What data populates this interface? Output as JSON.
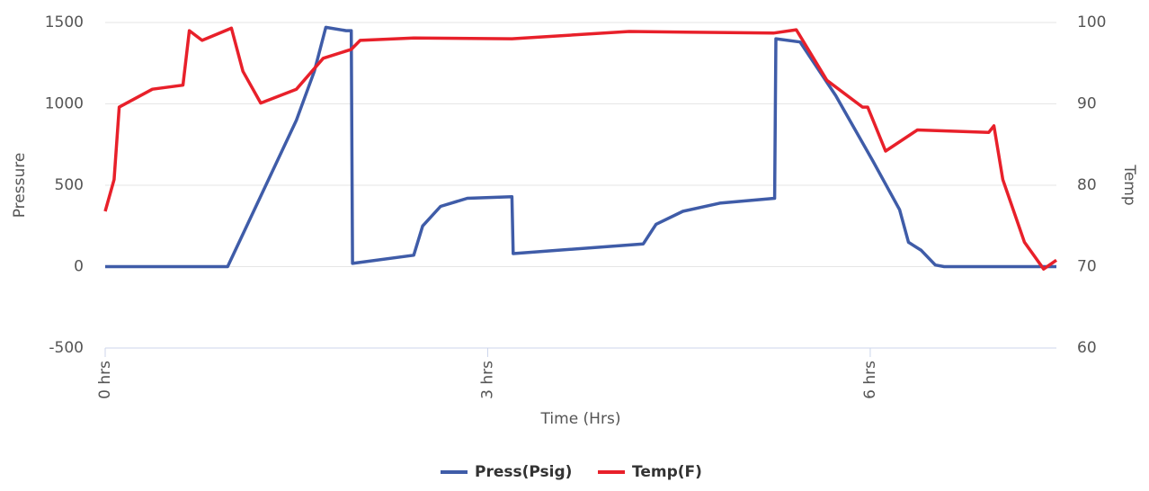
{
  "chart_data": {
    "type": "line",
    "x_label": "Time (Hrs)",
    "y_label": "Pressure",
    "y2_label": "Temp",
    "xlim": [
      0,
      7.46
    ],
    "xticks": [
      {
        "value": 0,
        "label": "0 hrs"
      },
      {
        "value": 3,
        "label": "3 hrs"
      },
      {
        "value": 6,
        "label": "6 hrs"
      }
    ],
    "ylim": [
      -500,
      1500
    ],
    "yticks": [
      -500,
      0,
      500,
      1000,
      1500
    ],
    "y2lim": [
      60,
      100
    ],
    "y2ticks": [
      60,
      70,
      80,
      90,
      100
    ],
    "grid": true,
    "legend": "bottom",
    "series": [
      {
        "name": "Press(Psig)",
        "color": "#3f5ca8",
        "x": [
          0,
          0.96,
          1.5,
          1.64,
          1.73,
          1.89,
          1.93,
          1.94,
          2.42,
          2.49,
          2.63,
          2.84,
          3.19,
          3.2,
          4.22,
          4.32,
          4.53,
          4.82,
          5.25,
          5.26,
          5.45,
          5.73,
          6.02,
          6.23,
          6.3,
          6.4,
          6.51,
          6.58,
          7.46
        ],
        "values": [
          0,
          0,
          900,
          1200,
          1470,
          1450,
          1450,
          20,
          70,
          250,
          370,
          420,
          430,
          80,
          140,
          260,
          340,
          390,
          420,
          1400,
          1380,
          1050,
          650,
          350,
          150,
          100,
          10,
          0,
          0
        ]
      },
      {
        "name": "Temp(F)",
        "color": "#e8202a",
        "axis": "y2",
        "x": [
          0,
          0.07,
          0.11,
          0.37,
          0.61,
          0.66,
          0.76,
          0.99,
          1.08,
          1.22,
          1.5,
          1.71,
          1.93,
          2.0,
          2.42,
          3.19,
          4.11,
          5.24,
          5.42,
          5.66,
          5.94,
          5.98,
          6.12,
          6.37,
          6.93,
          6.97,
          7.04,
          7.21,
          7.36,
          7.46
        ],
        "values": [
          76.8,
          80.7,
          89.6,
          91.8,
          92.3,
          99,
          97.8,
          99.3,
          94,
          90.1,
          91.8,
          95.6,
          96.7,
          97.8,
          98.1,
          98,
          98.9,
          98.7,
          99.1,
          92.9,
          89.6,
          89.6,
          84.2,
          86.8,
          86.5,
          87.3,
          80.7,
          73,
          69.7,
          70.8
        ]
      }
    ]
  }
}
